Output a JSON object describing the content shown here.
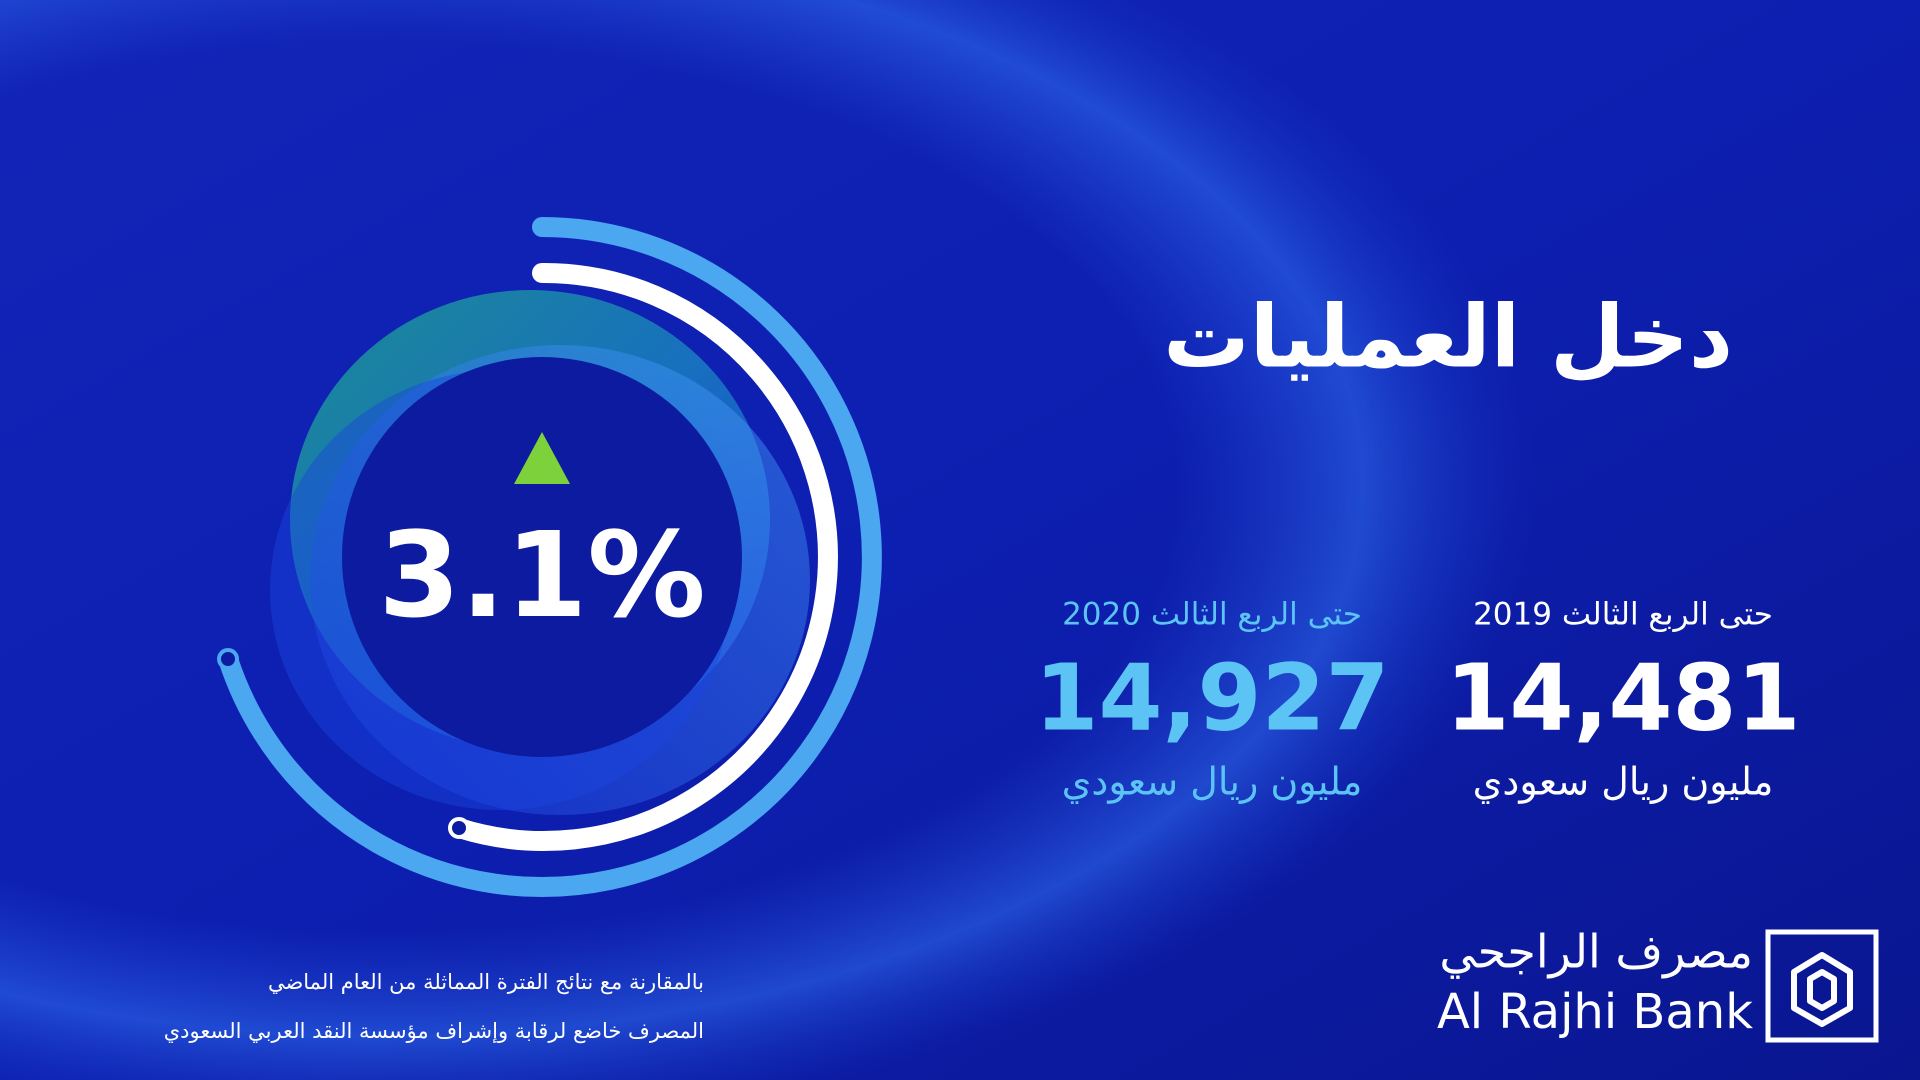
{
  "title": "دخل العمليات",
  "change": "3.1%",
  "periods": [
    {
      "label": "حتى الربع الثالث 2019",
      "value": "14,481",
      "unit": "مليون ريال سعودي"
    },
    {
      "label": "حتى الربع الثالث 2020",
      "value": "14,927",
      "unit": "مليون ريال سعودي"
    }
  ],
  "footnotes": [
    "بالمقارنة مع نتائج الفترة المماثلة من العام الماضي",
    "المصرف خاضع لرقابة وإشراف مؤسسة النقد العربي السعودي"
  ],
  "brand": {
    "arabic": "مصرف الراجحي",
    "english": "Al Rajhi Bank"
  }
}
